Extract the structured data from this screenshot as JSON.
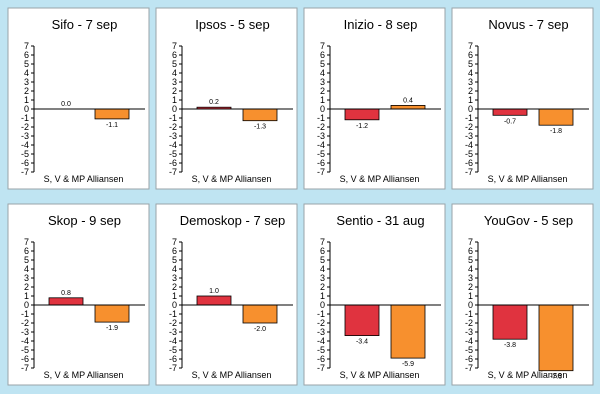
{
  "colors": {
    "background": "#bfe4f2",
    "sv_mp": "#e0333f",
    "alliansen": "#f7902e"
  },
  "chart_data": [
    {
      "type": "bar",
      "title": "Sifo - 7 sep",
      "categories": [
        "S, V & MP",
        "Alliansen"
      ],
      "values": [
        0.0,
        -1.1
      ],
      "labels": [
        "0.0",
        "-1.1"
      ],
      "ylim": [
        -7,
        7
      ],
      "yticks": [
        "7",
        "6",
        "5",
        "4",
        "3",
        "2",
        "1",
        "0",
        "-1",
        "-2",
        "-3",
        "-4",
        "-5",
        "-6",
        "-7"
      ],
      "xlabel": "S, V & MP Alliansen"
    },
    {
      "type": "bar",
      "title": "Ipsos - 5 sep",
      "categories": [
        "S, V & MP",
        "Alliansen"
      ],
      "values": [
        0.2,
        -1.3
      ],
      "labels": [
        "0.2",
        "-1.3"
      ],
      "ylim": [
        -7,
        7
      ],
      "yticks": [
        "7",
        "6",
        "5",
        "4",
        "3",
        "2",
        "1",
        "0",
        "-1",
        "-2",
        "-3",
        "-4",
        "-5",
        "-6",
        "-7"
      ],
      "xlabel": "S, V & MP Alliansen"
    },
    {
      "type": "bar",
      "title": "Inizio - 8 sep",
      "categories": [
        "S, V & MP",
        "Alliansen"
      ],
      "values": [
        -1.2,
        0.4
      ],
      "labels": [
        "-1.2",
        "0.4"
      ],
      "ylim": [
        -7,
        7
      ],
      "yticks": [
        "7",
        "6",
        "5",
        "4",
        "3",
        "2",
        "1",
        "0",
        "-1",
        "-2",
        "-3",
        "-4",
        "-5",
        "-6",
        "-7"
      ],
      "xlabel": "S, V & MP Alliansen"
    },
    {
      "type": "bar",
      "title": "Novus - 7 sep",
      "categories": [
        "S, V & MP",
        "Alliansen"
      ],
      "values": [
        -0.7,
        -1.8
      ],
      "labels": [
        "-0.7",
        "-1.8"
      ],
      "ylim": [
        -7,
        7
      ],
      "yticks": [
        "7",
        "6",
        "5",
        "4",
        "3",
        "2",
        "1",
        "0",
        "-1",
        "-2",
        "-3",
        "-4",
        "-5",
        "-6",
        "-7"
      ],
      "xlabel": "S, V & MP Alliansen"
    },
    {
      "type": "bar",
      "title": "Skop - 9 sep",
      "categories": [
        "S, V & MP",
        "Alliansen"
      ],
      "values": [
        0.8,
        -1.9
      ],
      "labels": [
        "0.8",
        "-1.9"
      ],
      "ylim": [
        -7,
        7
      ],
      "yticks": [
        "7",
        "6",
        "5",
        "4",
        "3",
        "2",
        "1",
        "0",
        "-1",
        "-2",
        "-3",
        "-4",
        "-5",
        "-6",
        "-7"
      ],
      "xlabel": "S, V & MP Alliansen"
    },
    {
      "type": "bar",
      "title": "Demoskop - 7 sep",
      "categories": [
        "S, V & MP",
        "Alliansen"
      ],
      "values": [
        1.0,
        -2.0
      ],
      "labels": [
        "1.0",
        "-2.0"
      ],
      "ylim": [
        -7,
        7
      ],
      "yticks": [
        "7",
        "6",
        "5",
        "4",
        "3",
        "2",
        "1",
        "0",
        "-1",
        "-2",
        "-3",
        "-4",
        "-5",
        "-6",
        "-7"
      ],
      "xlabel": "S, V & MP Alliansen"
    },
    {
      "type": "bar",
      "title": "Sentio - 31 aug",
      "categories": [
        "S, V & MP",
        "Alliansen"
      ],
      "values": [
        -3.4,
        -5.9
      ],
      "labels": [
        "-3.4",
        "-5.9"
      ],
      "ylim": [
        -7,
        7
      ],
      "yticks": [
        "7",
        "6",
        "5",
        "4",
        "3",
        "2",
        "1",
        "0",
        "-1",
        "-2",
        "-3",
        "-4",
        "-5",
        "-6",
        "-7"
      ],
      "xlabel": "S, V & MP Alliansen"
    },
    {
      "type": "bar",
      "title": "YouGov - 5 sep",
      "categories": [
        "S, V & MP",
        "Alliansen"
      ],
      "values": [
        -3.8,
        -7.3
      ],
      "labels": [
        "-3.8",
        "-7.3"
      ],
      "ylim": [
        -7,
        7
      ],
      "yticks": [
        "7",
        "6",
        "5",
        "4",
        "3",
        "2",
        "1",
        "0",
        "-1",
        "-2",
        "-3",
        "-4",
        "-5",
        "-6",
        "-7"
      ],
      "xlabel": "S, V & MP Alliansen"
    }
  ]
}
